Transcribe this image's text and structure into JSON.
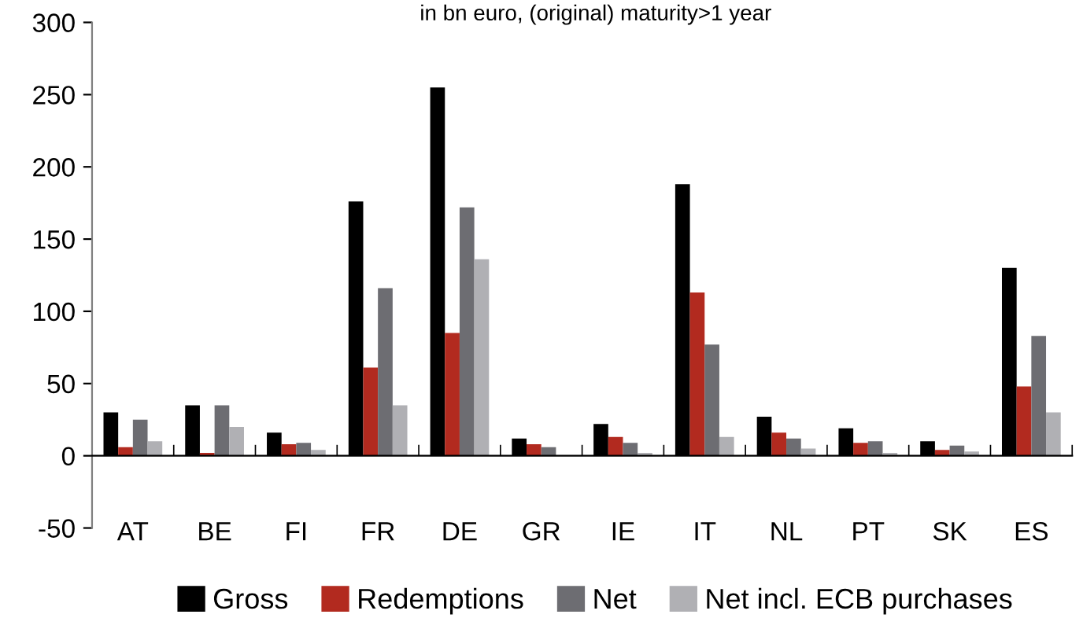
{
  "chart_data": {
    "type": "bar",
    "title": "in bn euro, (original) maturity>1 year",
    "categories": [
      "AT",
      "BE",
      "FI",
      "FR",
      "DE",
      "GR",
      "IE",
      "IT",
      "NL",
      "PT",
      "SK",
      "ES"
    ],
    "series": [
      {
        "name": "Gross",
        "color": "#000000",
        "values": [
          30,
          35,
          16,
          176,
          255,
          12,
          22,
          188,
          27,
          19,
          10,
          130
        ]
      },
      {
        "name": "Redemptions",
        "color": "#b22a1f",
        "values": [
          6,
          2,
          8,
          61,
          85,
          8,
          13,
          113,
          16,
          9,
          4,
          48
        ]
      },
      {
        "name": "Net",
        "color": "#6d6d72",
        "values": [
          25,
          35,
          9,
          116,
          172,
          6,
          9,
          77,
          12,
          10,
          7,
          83
        ]
      },
      {
        "name": "Net incl. ECB purchases",
        "color": "#b0b0b4",
        "values": [
          10,
          20,
          4,
          35,
          136,
          0,
          2,
          13,
          5,
          2,
          3,
          30
        ]
      }
    ],
    "ylim": [
      -50,
      300
    ],
    "yticks": [
      -50,
      0,
      50,
      100,
      150,
      200,
      250,
      300
    ],
    "grid": false,
    "legend": "bottom"
  }
}
